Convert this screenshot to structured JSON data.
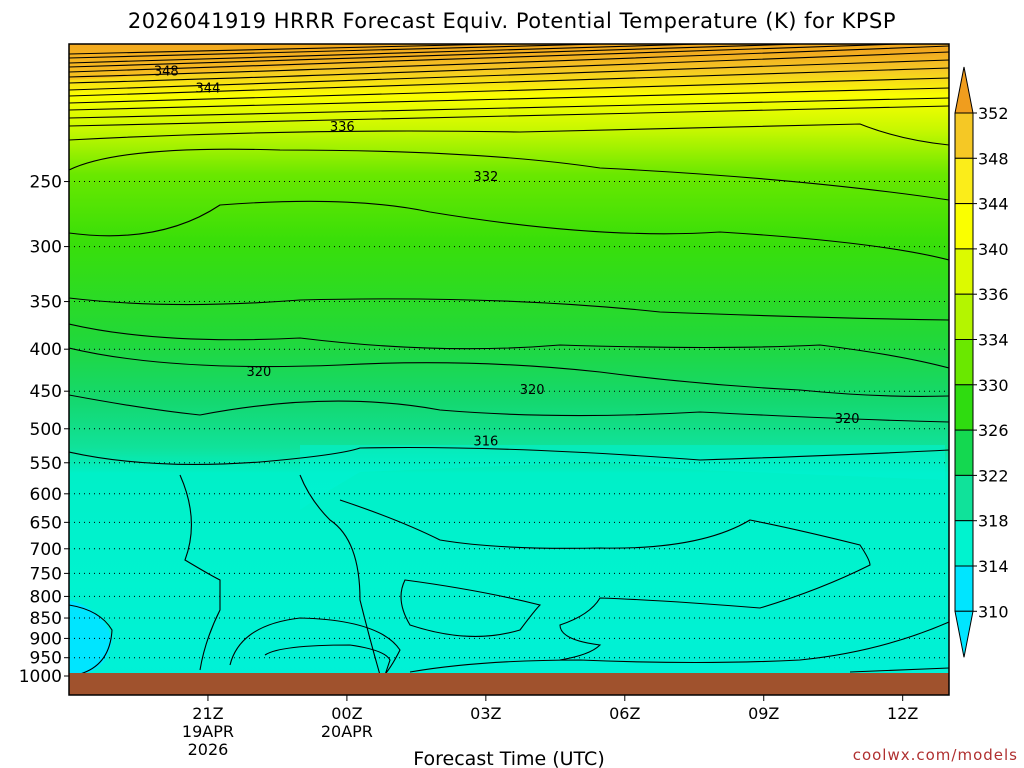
{
  "chart_data": {
    "type": "contour",
    "title": "2026041919 HRRR Forecast Equiv. Potential Temperature (K) for KPSP",
    "xlabel": "Forecast Time (UTC)",
    "ylabel": "",
    "y_scale": "log-pressure",
    "ylim_hPa": [
      1000,
      170
    ],
    "y_ticks": [
      "250",
      "300",
      "350",
      "400",
      "450",
      "500",
      "550",
      "600",
      "650",
      "700",
      "750",
      "800",
      "850",
      "900",
      "950",
      "1000"
    ],
    "y_tick_values": [
      250,
      300,
      350,
      400,
      450,
      500,
      550,
      600,
      650,
      700,
      750,
      800,
      850,
      900,
      950,
      1000
    ],
    "x_ticks": [
      {
        "hour": 2,
        "label": "21Z",
        "date": "19APR",
        "year": "2026"
      },
      {
        "hour": 5,
        "label": "00Z",
        "date": "20APR"
      },
      {
        "hour": 8,
        "label": "03Z"
      },
      {
        "hour": 11,
        "label": "06Z"
      },
      {
        "hour": 14,
        "label": "09Z"
      },
      {
        "hour": 17,
        "label": "12Z"
      }
    ],
    "xlim_hours": [
      -1,
      18
    ],
    "grid": "dotted horizontal",
    "colorbar": {
      "levels": [
        "352",
        "348",
        "344",
        "340",
        "336",
        "334",
        "330",
        "326",
        "322",
        "318",
        "314",
        "310"
      ],
      "colors": [
        "#f09d1e",
        "#f5c825",
        "#fbed1a",
        "#faff00",
        "#dcfa00",
        "#b4f500",
        "#6ae800",
        "#2fdc10",
        "#14d850",
        "#10e29a",
        "#00f3cf",
        "#00e5ff"
      ]
    },
    "contour_labels": [
      {
        "value": "348",
        "hour": 1.1,
        "p": 183
      },
      {
        "value": "344",
        "hour": 2.0,
        "p": 192
      },
      {
        "value": "336",
        "hour": 4.9,
        "p": 214
      },
      {
        "value": "332",
        "hour": 8.0,
        "p": 246
      },
      {
        "value": "320",
        "hour": 3.1,
        "p": 425
      },
      {
        "value": "320",
        "hour": 9.0,
        "p": 447
      },
      {
        "value": "320",
        "hour": 15.8,
        "p": 485
      },
      {
        "value": "316",
        "hour": 8.0,
        "p": 517
      }
    ],
    "terrain_color": "#a0522d",
    "surface_pressure_hPa": 1000
  },
  "credit": "coolwx.com/models"
}
